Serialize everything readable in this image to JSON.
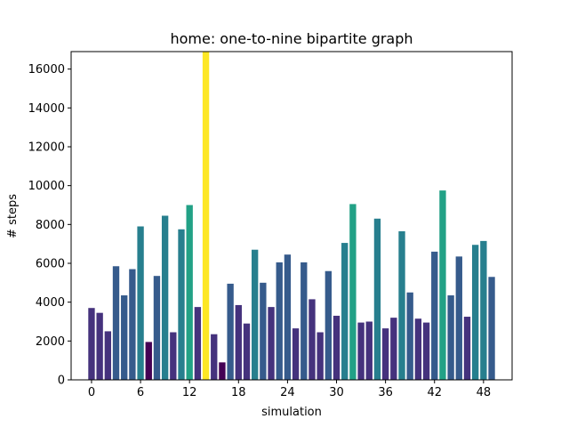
{
  "chart_data": {
    "type": "bar",
    "title": "home: one-to-nine bipartite graph",
    "xlabel": "simulation",
    "ylabel": "# steps",
    "x": [
      0,
      1,
      2,
      3,
      4,
      5,
      6,
      7,
      8,
      9,
      10,
      11,
      12,
      13,
      14,
      15,
      16,
      17,
      18,
      19,
      20,
      21,
      22,
      23,
      24,
      25,
      26,
      27,
      28,
      29,
      30,
      31,
      32,
      33,
      34,
      35,
      36,
      37,
      38,
      39,
      40,
      41,
      42,
      43,
      44,
      45,
      46,
      47,
      48,
      49
    ],
    "values": [
      3700,
      3450,
      2500,
      5850,
      4350,
      5700,
      7900,
      1950,
      5350,
      8450,
      2450,
      7750,
      9000,
      3750,
      16900,
      2350,
      900,
      4950,
      3850,
      2900,
      6700,
      5000,
      3750,
      6050,
      6450,
      2650,
      6050,
      4150,
      2450,
      5600,
      3300,
      7050,
      9050,
      2950,
      3000,
      8300,
      2650,
      3200,
      7650,
      4500,
      3150,
      2950,
      6600,
      9750,
      4350,
      6350,
      3250,
      6950,
      7150,
      5300
    ],
    "xlim": [
      -2.5,
      51.5
    ],
    "ylim": [
      0,
      16900
    ],
    "xticks": [
      0,
      6,
      12,
      18,
      24,
      30,
      36,
      42,
      48
    ],
    "xtick_labels": [
      "0",
      "6",
      "12",
      "18",
      "24",
      "30",
      "36",
      "42",
      "48"
    ],
    "yticks": [
      0,
      2000,
      4000,
      6000,
      8000,
      10000,
      12000,
      14000,
      16000
    ],
    "ytick_labels": [
      "0",
      "2000",
      "4000",
      "6000",
      "8000",
      "10000",
      "12000",
      "14000",
      "16000"
    ],
    "colormap": "viridis",
    "grid": false
  }
}
